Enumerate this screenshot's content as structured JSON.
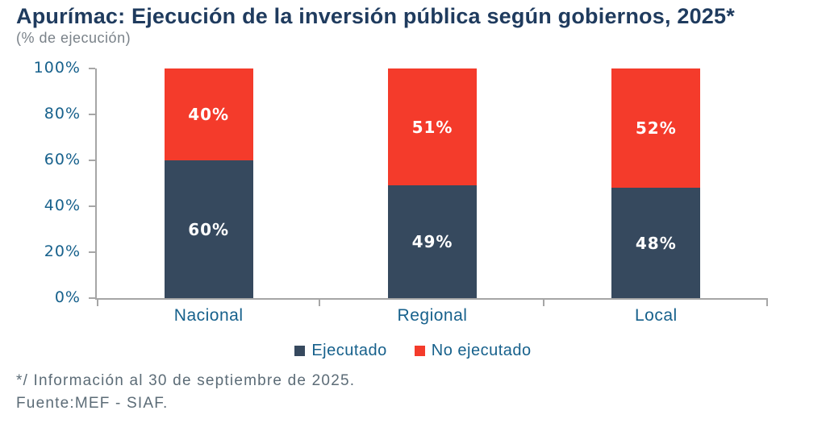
{
  "header": {
    "title": "Apurímac: Ejecución de la inversión pública según gobiernos, 2025*",
    "subtitle": "(% de ejecución)"
  },
  "chart_data": {
    "type": "bar",
    "stacked": true,
    "title": "Apurímac: Ejecución de la inversión pública según gobiernos, 2025*",
    "subtitle": "(% de ejecución)",
    "categories": [
      "Nacional",
      "Regional",
      "Local"
    ],
    "series": [
      {
        "name": "Ejecutado",
        "color": "#36495E",
        "values": [
          60,
          49,
          48
        ]
      },
      {
        "name": "No ejecutado",
        "color": "#F43B2B",
        "values": [
          40,
          51,
          52
        ]
      }
    ],
    "value_suffix": "%",
    "xlabel": "",
    "ylabel": "",
    "ylim": [
      0,
      100
    ],
    "yticks": [
      0,
      20,
      40,
      60,
      80,
      100
    ],
    "ytick_labels": [
      "0%",
      "20%",
      "40%",
      "60%",
      "80%",
      "100%"
    ],
    "grid": false,
    "legend_position": "bottom"
  },
  "colors": {
    "title_text": "#1F3B5E",
    "subtitle_text": "#7A8289",
    "axis_text": "#17618C",
    "axis_line": "#A6A6A6",
    "bar_value_text": "#FFFFFF",
    "footnote_text": "#5C6C77"
  },
  "footer": {
    "note1": "*/ Información al 30 de septiembre de 2025.",
    "note2": "Fuente:MEF - SIAF."
  }
}
